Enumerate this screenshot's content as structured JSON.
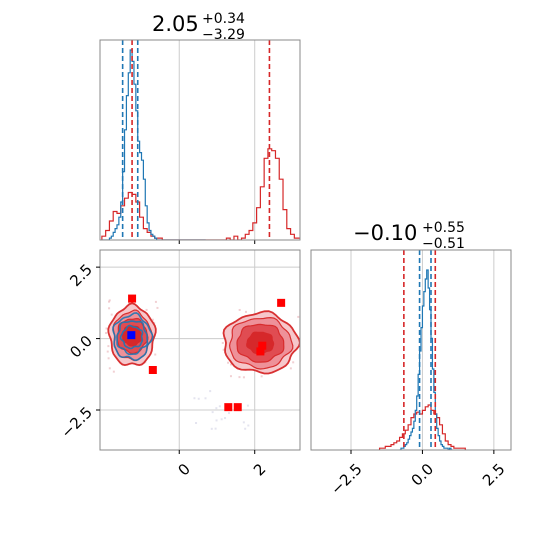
{
  "chart_data": [
    {
      "panel": "top-left",
      "type": "histogram",
      "title_main": "2.05",
      "title_sup": "+0.34",
      "title_sub": "−3.29",
      "xlim": [
        -2.1,
        3.2
      ],
      "grid": true,
      "series": [
        {
          "color": "#d62728",
          "bin_step": 0.1,
          "bin_start": -2.05,
          "values": [
            0.02,
            0.05,
            0.1,
            0.15,
            0.14,
            0.18,
            0.22,
            0.25,
            0.24,
            0.2,
            0.12,
            0.06,
            0.04,
            0.02,
            0.01,
            0.01,
            0,
            0,
            0,
            0,
            0,
            0,
            0,
            0,
            0,
            0,
            0,
            0,
            0,
            0,
            0,
            0,
            0,
            0.01,
            0,
            0.02,
            0,
            0.01,
            0.03,
            0.05,
            0.09,
            0.17,
            0.28,
            0.43,
            0.48,
            0.47,
            0.43,
            0.32,
            0.16,
            0.06,
            0.03,
            0.01,
            0.01,
            0,
            0
          ]
        },
        {
          "color": "#1f77b4",
          "bin_step": 0.05,
          "bin_start": -2.05,
          "values": [
            0,
            0,
            0,
            0,
            0.01,
            0.02,
            0.04,
            0.06,
            0.08,
            0.12,
            0.2,
            0.36,
            0.58,
            0.76,
            0.88,
            1.0,
            0.94,
            0.82,
            0.68,
            0.52,
            0.46,
            0.42,
            0.32,
            0.18,
            0.09,
            0.05,
            0.03,
            0.02,
            0.01,
            0,
            0,
            0,
            0,
            0,
            0,
            0,
            0,
            0,
            0,
            0,
            0,
            0,
            0,
            0,
            0,
            0,
            0,
            0,
            0,
            0,
            0,
            0,
            0,
            0,
            0
          ]
        }
      ],
      "vlines": [
        {
          "x": -1.5,
          "color": "#1f77b4"
        },
        {
          "x": -1.1,
          "color": "#1f77b4"
        },
        {
          "x": -1.25,
          "color": "#d62728"
        },
        {
          "x": 2.39,
          "color": "#d62728"
        }
      ]
    },
    {
      "panel": "bottom-left",
      "type": "contour-scatter",
      "xlim": [
        -2.1,
        3.2
      ],
      "ylim": [
        -3.9,
        3.1
      ],
      "grid": true,
      "yticks": [
        2.5,
        0.0,
        -2.5
      ],
      "ytick_labels": [
        "2.5",
        "0.0",
        "−2.5"
      ],
      "xticks": [
        0,
        2
      ],
      "xtick_labels": [
        "0",
        "2"
      ],
      "red_blobs": [
        {
          "cx": -1.25,
          "cy": 0.1,
          "rx": [
            0.6,
            0.5,
            0.4,
            0.25
          ],
          "ry": [
            1.05,
            0.85,
            0.6,
            0.35
          ]
        },
        {
          "cx": 2.15,
          "cy": -0.15,
          "rx": [
            0.98,
            0.82,
            0.62,
            0.35
          ],
          "ry": [
            1.05,
            0.88,
            0.66,
            0.38
          ]
        }
      ],
      "blue_blob": {
        "cx": -1.25,
        "cy": 0.05,
        "rx": [
          0.5,
          0.4,
          0.28
        ],
        "ry": [
          0.78,
          0.58,
          0.38
        ]
      },
      "red_markers": {
        "x": [
          -1.25,
          -0.7,
          1.3,
          1.55,
          2.7,
          2.2,
          2.15
        ],
        "y": [
          1.4,
          -1.1,
          -2.4,
          -2.4,
          1.25,
          -0.25,
          -0.45
        ]
      },
      "blue_markers": {
        "x": [
          -1.27
        ],
        "y": [
          0.12
        ]
      }
    },
    {
      "panel": "bottom-right",
      "type": "histogram",
      "title_main": "−0.10",
      "title_sup": "+0.55",
      "title_sub": "−0.51",
      "xlim": [
        -3.9,
        3.1
      ],
      "grid": true,
      "xticks": [
        -2.5,
        0.0,
        2.5
      ],
      "xtick_labels": [
        "−2.5",
        "0.0",
        "2.5"
      ],
      "series": [
        {
          "color": "#d62728",
          "bin_step": 0.1,
          "bin_start": -1.5,
          "values": [
            0.01,
            0.01,
            0.02,
            0.02,
            0.03,
            0.04,
            0.05,
            0.07,
            0.09,
            0.11,
            0.14,
            0.18,
            0.2,
            0.21,
            0.2,
            0.22,
            0.24,
            0.25,
            0.22,
            0.2,
            0.18,
            0.14,
            0.09,
            0.05,
            0.03,
            0.02,
            0.01,
            0.01,
            0.01,
            0.01
          ]
        },
        {
          "color": "#1f77b4",
          "bin_step": 0.05,
          "bin_start": -0.8,
          "values": [
            0,
            0.01,
            0.01,
            0.02,
            0.03,
            0.04,
            0.06,
            0.08,
            0.1,
            0.12,
            0.16,
            0.22,
            0.3,
            0.42,
            0.55,
            0.68,
            0.8,
            0.88,
            0.95,
            1.0,
            0.9,
            0.78,
            0.62,
            0.45,
            0.32,
            0.2,
            0.12,
            0.08,
            0.05,
            0.03,
            0.02,
            0.01,
            0.01,
            0.01,
            0,
            0.01,
            0
          ]
        }
      ],
      "vlines": [
        {
          "x": -0.65,
          "color": "#d62728"
        },
        {
          "x": -0.1,
          "color": "#1f77b4"
        },
        {
          "x": 0.3,
          "color": "#1f77b4"
        },
        {
          "x": 0.45,
          "color": "#d62728"
        }
      ]
    }
  ]
}
